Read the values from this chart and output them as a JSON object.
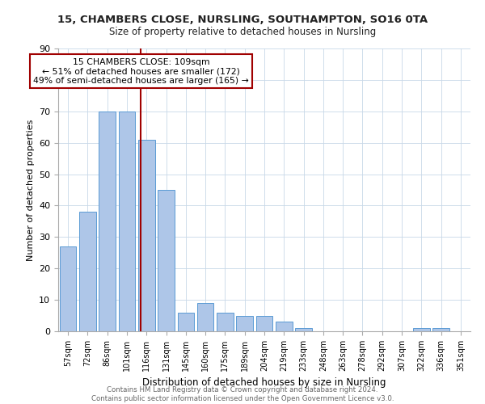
{
  "title1": "15, CHAMBERS CLOSE, NURSLING, SOUTHAMPTON, SO16 0TA",
  "title2": "Size of property relative to detached houses in Nursling",
  "xlabel": "Distribution of detached houses by size in Nursling",
  "ylabel": "Number of detached properties",
  "categories": [
    "57sqm",
    "72sqm",
    "86sqm",
    "101sqm",
    "116sqm",
    "131sqm",
    "145sqm",
    "160sqm",
    "175sqm",
    "189sqm",
    "204sqm",
    "219sqm",
    "233sqm",
    "248sqm",
    "263sqm",
    "278sqm",
    "292sqm",
    "307sqm",
    "322sqm",
    "336sqm",
    "351sqm"
  ],
  "values": [
    27,
    38,
    70,
    70,
    61,
    45,
    6,
    9,
    6,
    5,
    5,
    3,
    1,
    0,
    0,
    0,
    0,
    0,
    1,
    1,
    0
  ],
  "bar_color": "#aec6e8",
  "bar_edge_color": "#5b9bd5",
  "vline_x": 3.72,
  "vline_color": "#a00000",
  "annotation_text": "15 CHAMBERS CLOSE: 109sqm\n← 51% of detached houses are smaller (172)\n49% of semi-detached houses are larger (165) →",
  "annotation_box_color": "#ffffff",
  "annotation_box_edge": "#a00000",
  "ylim": [
    0,
    90
  ],
  "yticks": [
    0,
    10,
    20,
    30,
    40,
    50,
    60,
    70,
    80,
    90
  ],
  "footer_text": "Contains HM Land Registry data © Crown copyright and database right 2024.\nContains public sector information licensed under the Open Government Licence v3.0.",
  "background_color": "#ffffff",
  "grid_color": "#c8d8e8"
}
